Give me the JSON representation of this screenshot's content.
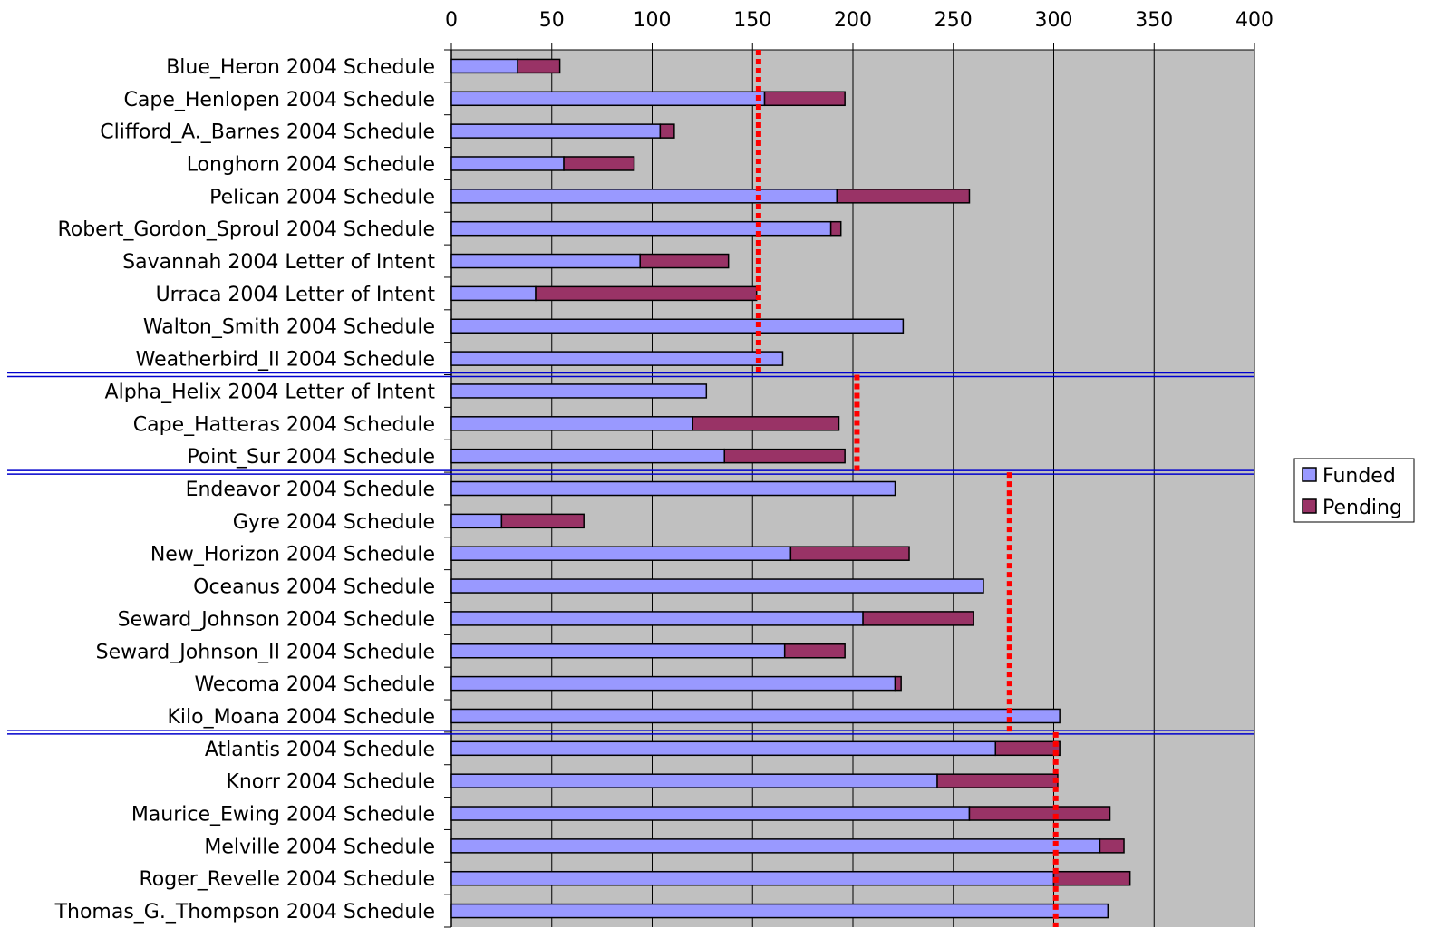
{
  "chart_data": {
    "type": "bar",
    "orientation": "horizontal",
    "stacked": true,
    "x_ticks": [
      "0",
      "50",
      "100",
      "150",
      "200",
      "250",
      "300",
      "350",
      "400"
    ],
    "xlim": [
      0,
      400
    ],
    "grid": true,
    "legend_position": "right",
    "colors": {
      "plot_background": "#c0c0c0",
      "funded": "#9999ff",
      "pending": "#993366",
      "reference_line": "#ff0000",
      "group_separator": "#0000cc"
    },
    "categories": [
      "Blue_Heron 2004 Schedule",
      "Cape_Henlopen 2004 Schedule",
      "Clifford_A._Barnes 2004 Schedule",
      "Longhorn 2004 Schedule",
      "Pelican 2004 Schedule",
      "Robert_Gordon_Sproul 2004 Schedule",
      "Savannah 2004 Letter of Intent",
      "Urraca 2004 Letter of Intent",
      "Walton_Smith 2004 Schedule",
      "Weatherbird_II 2004 Schedule",
      "Alpha_Helix 2004 Letter of Intent",
      "Cape_Hatteras 2004 Schedule",
      "Point_Sur 2004 Schedule",
      "Endeavor 2004 Schedule",
      "Gyre 2004 Schedule",
      "New_Horizon 2004 Schedule",
      "Oceanus 2004 Schedule",
      "Seward_Johnson 2004 Schedule",
      "Seward_Johnson_II 2004 Schedule",
      "Wecoma 2004 Schedule",
      "Kilo_Moana 2004 Schedule",
      "Atlantis 2004 Schedule",
      "Knorr 2004 Schedule",
      "Maurice_Ewing 2004 Schedule",
      "Melville 2004 Schedule",
      "Roger_Revelle 2004 Schedule",
      "Thomas_G._Thompson 2004 Schedule"
    ],
    "series": [
      {
        "name": "Funded",
        "values": [
          33,
          156,
          104,
          56,
          192,
          189,
          94,
          42,
          225,
          165,
          127,
          120,
          136,
          221,
          25,
          169,
          265,
          205,
          166,
          221,
          303,
          271,
          242,
          258,
          323,
          300,
          327
        ]
      },
      {
        "name": "Pending",
        "values": [
          21,
          40,
          7,
          35,
          66,
          5,
          44,
          110,
          0,
          0,
          0,
          73,
          60,
          0,
          41,
          59,
          0,
          55,
          30,
          3,
          0,
          32,
          60,
          70,
          12,
          38,
          0
        ]
      }
    ],
    "groups": [
      {
        "first_row": 0,
        "last_row": 9,
        "reference_value": 153
      },
      {
        "first_row": 10,
        "last_row": 12,
        "reference_value": 202
      },
      {
        "first_row": 13,
        "last_row": 20,
        "reference_value": 278
      },
      {
        "first_row": 21,
        "last_row": 26,
        "reference_value": 301
      }
    ]
  }
}
